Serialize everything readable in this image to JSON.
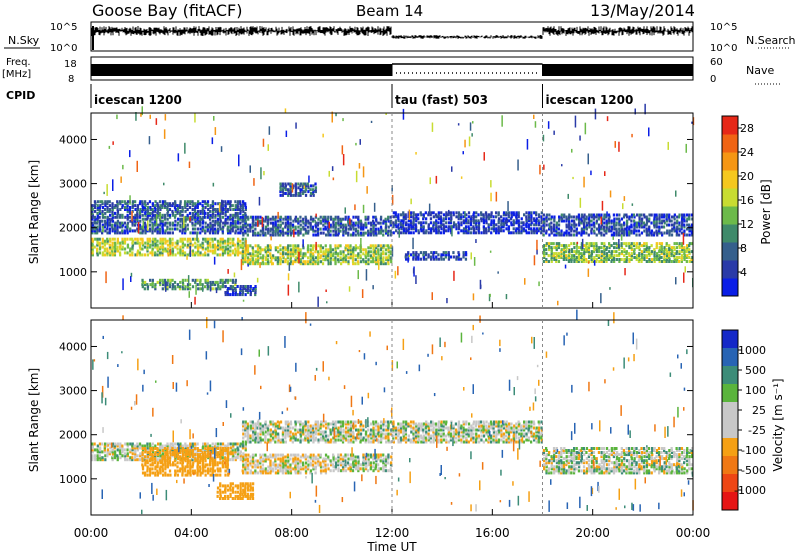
{
  "header": {
    "station": "Goose Bay (fitACF)",
    "beam": "Beam 14",
    "date": "13/May/2014"
  },
  "top_panels": {
    "nsky_label": "N.Sky",
    "nsky_ticks": [
      "10^5",
      "10^0"
    ],
    "nsearch_label": "N.Search",
    "nsearch_ticks": [
      "10^5",
      "10^0"
    ],
    "freq_label": "Freq.",
    "freq_unit": "[MHz]",
    "freq_ticks": [
      "18",
      "8"
    ],
    "nave_label": "Nave",
    "nave_ticks": [
      "60",
      "0"
    ],
    "cpid_label": "CPID",
    "cpid_segments": [
      {
        "name": "icescan 1200",
        "start_hour": 0,
        "end_hour": 12
      },
      {
        "name": "tau (fast) 503",
        "start_hour": 12,
        "end_hour": 18
      },
      {
        "name": "icescan 1200",
        "start_hour": 18,
        "end_hour": 24
      }
    ]
  },
  "chart_data": [
    {
      "type": "heatmap",
      "title": "",
      "xlabel": "Time UT",
      "ylabel": "Slant Range [km]",
      "xlim": [
        0,
        24
      ],
      "ylim": [
        180,
        4600
      ],
      "x_ticks": [
        "00:00",
        "04:00",
        "08:00",
        "12:00",
        "16:00",
        "20:00",
        "00:00"
      ],
      "y_ticks": [
        1000,
        2000,
        3000,
        4000
      ],
      "colorbar": {
        "label": "Power [dB]",
        "ticks": [
          4,
          8,
          12,
          16,
          20,
          24,
          28
        ],
        "range": [
          0,
          30
        ],
        "colors": [
          "#0a1ee6",
          "#2a3aa8",
          "#355f8c",
          "#3f8a6a",
          "#6cba4a",
          "#c8dc32",
          "#f5c81e",
          "#f59614",
          "#f06414",
          "#e62818"
        ]
      },
      "bands": [
        {
          "x0": 0.0,
          "x1": 6.2,
          "r0": 1350,
          "r1": 1750,
          "power": 16
        },
        {
          "x0": 0.0,
          "x1": 6.2,
          "r0": 1850,
          "r1": 2600,
          "power": 6
        },
        {
          "x0": 2.0,
          "x1": 5.8,
          "r0": 580,
          "r1": 820,
          "power": 11
        },
        {
          "x0": 5.3,
          "x1": 6.6,
          "r0": 450,
          "r1": 680,
          "power": 6
        },
        {
          "x0": 6.0,
          "x1": 12.0,
          "r0": 1150,
          "r1": 1600,
          "power": 15
        },
        {
          "x0": 6.0,
          "x1": 12.0,
          "r0": 1800,
          "r1": 2250,
          "power": 6
        },
        {
          "x0": 7.5,
          "x1": 9.0,
          "r0": 2700,
          "r1": 3000,
          "power": 7
        },
        {
          "x0": 12.0,
          "x1": 18.0,
          "r0": 1850,
          "r1": 2350,
          "power": 4
        },
        {
          "x0": 12.5,
          "x1": 15.0,
          "r0": 1250,
          "r1": 1450,
          "power": 5
        },
        {
          "x0": 18.0,
          "x1": 24.0,
          "r0": 1200,
          "r1": 1650,
          "power": 14
        },
        {
          "x0": 18.0,
          "x1": 24.0,
          "r0": 1800,
          "r1": 2300,
          "power": 5
        }
      ]
    },
    {
      "type": "heatmap",
      "title": "",
      "xlabel": "Time UT",
      "ylabel": "Slant Range [km]",
      "xlim": [
        0,
        24
      ],
      "ylim": [
        180,
        4600
      ],
      "x_ticks": [
        "00:00",
        "04:00",
        "08:00",
        "12:00",
        "16:00",
        "20:00",
        "00:00"
      ],
      "y_ticks": [
        1000,
        2000,
        3000,
        4000
      ],
      "colorbar": {
        "label": "Velocity [m s⁻¹]",
        "ticks": [
          "1000",
          "500",
          "100",
          "25",
          "-25",
          "-100",
          "-500",
          "-1000"
        ],
        "colors": [
          "#1428c8",
          "#2864b4",
          "#3c8c78",
          "#5ab43c",
          "#c8c8c8",
          "#c8c8c8",
          "#f5a014",
          "#f07814",
          "#ee4614",
          "#e61414"
        ]
      },
      "bands": [
        {
          "x0": 0.0,
          "x1": 6.2,
          "r0": 1400,
          "r1": 1800,
          "velocity": 0
        },
        {
          "x0": 2.0,
          "x1": 5.5,
          "r0": 1050,
          "r1": 1700,
          "velocity": -300
        },
        {
          "x0": 5.0,
          "x1": 6.5,
          "r0": 520,
          "r1": 900,
          "velocity": -300
        },
        {
          "x0": 6.0,
          "x1": 9.5,
          "r0": 1100,
          "r1": 1550,
          "velocity": -80
        },
        {
          "x0": 6.0,
          "x1": 12.0,
          "r0": 1800,
          "r1": 2300,
          "velocity": 0
        },
        {
          "x0": 9.5,
          "x1": 12.0,
          "r0": 1150,
          "r1": 1550,
          "velocity": 0
        },
        {
          "x0": 12.0,
          "x1": 18.0,
          "r0": 1800,
          "r1": 2300,
          "velocity": 0
        },
        {
          "x0": 18.0,
          "x1": 24.0,
          "r0": 1100,
          "r1": 1700,
          "velocity": 0
        }
      ]
    }
  ]
}
